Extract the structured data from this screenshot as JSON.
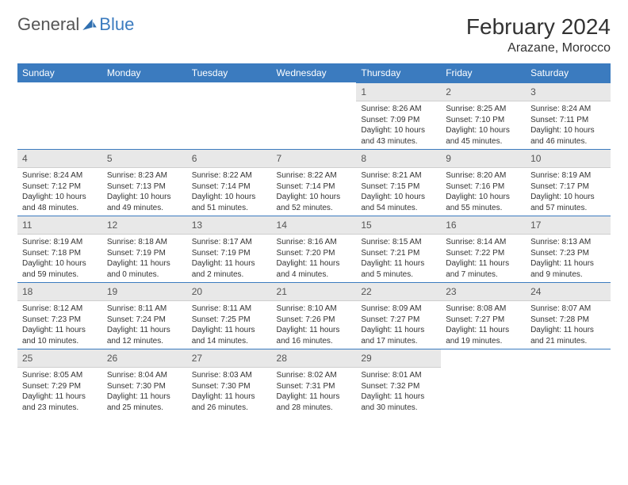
{
  "brand": {
    "word1": "General",
    "word2": "Blue",
    "icon_color": "#2f6fb0"
  },
  "title": "February 2024",
  "location": "Arazane, Morocco",
  "header_bg": "#3b7bbf",
  "header_fg": "#ffffff",
  "daynum_bg": "#e8e8e8",
  "rule_color": "#3b7bbf",
  "weekdays": [
    "Sunday",
    "Monday",
    "Tuesday",
    "Wednesday",
    "Thursday",
    "Friday",
    "Saturday"
  ],
  "weeks": [
    [
      null,
      null,
      null,
      null,
      {
        "n": "1",
        "sunrise": "Sunrise: 8:26 AM",
        "sunset": "Sunset: 7:09 PM",
        "daylight": "Daylight: 10 hours and 43 minutes."
      },
      {
        "n": "2",
        "sunrise": "Sunrise: 8:25 AM",
        "sunset": "Sunset: 7:10 PM",
        "daylight": "Daylight: 10 hours and 45 minutes."
      },
      {
        "n": "3",
        "sunrise": "Sunrise: 8:24 AM",
        "sunset": "Sunset: 7:11 PM",
        "daylight": "Daylight: 10 hours and 46 minutes."
      }
    ],
    [
      {
        "n": "4",
        "sunrise": "Sunrise: 8:24 AM",
        "sunset": "Sunset: 7:12 PM",
        "daylight": "Daylight: 10 hours and 48 minutes."
      },
      {
        "n": "5",
        "sunrise": "Sunrise: 8:23 AM",
        "sunset": "Sunset: 7:13 PM",
        "daylight": "Daylight: 10 hours and 49 minutes."
      },
      {
        "n": "6",
        "sunrise": "Sunrise: 8:22 AM",
        "sunset": "Sunset: 7:14 PM",
        "daylight": "Daylight: 10 hours and 51 minutes."
      },
      {
        "n": "7",
        "sunrise": "Sunrise: 8:22 AM",
        "sunset": "Sunset: 7:14 PM",
        "daylight": "Daylight: 10 hours and 52 minutes."
      },
      {
        "n": "8",
        "sunrise": "Sunrise: 8:21 AM",
        "sunset": "Sunset: 7:15 PM",
        "daylight": "Daylight: 10 hours and 54 minutes."
      },
      {
        "n": "9",
        "sunrise": "Sunrise: 8:20 AM",
        "sunset": "Sunset: 7:16 PM",
        "daylight": "Daylight: 10 hours and 55 minutes."
      },
      {
        "n": "10",
        "sunrise": "Sunrise: 8:19 AM",
        "sunset": "Sunset: 7:17 PM",
        "daylight": "Daylight: 10 hours and 57 minutes."
      }
    ],
    [
      {
        "n": "11",
        "sunrise": "Sunrise: 8:19 AM",
        "sunset": "Sunset: 7:18 PM",
        "daylight": "Daylight: 10 hours and 59 minutes."
      },
      {
        "n": "12",
        "sunrise": "Sunrise: 8:18 AM",
        "sunset": "Sunset: 7:19 PM",
        "daylight": "Daylight: 11 hours and 0 minutes."
      },
      {
        "n": "13",
        "sunrise": "Sunrise: 8:17 AM",
        "sunset": "Sunset: 7:19 PM",
        "daylight": "Daylight: 11 hours and 2 minutes."
      },
      {
        "n": "14",
        "sunrise": "Sunrise: 8:16 AM",
        "sunset": "Sunset: 7:20 PM",
        "daylight": "Daylight: 11 hours and 4 minutes."
      },
      {
        "n": "15",
        "sunrise": "Sunrise: 8:15 AM",
        "sunset": "Sunset: 7:21 PM",
        "daylight": "Daylight: 11 hours and 5 minutes."
      },
      {
        "n": "16",
        "sunrise": "Sunrise: 8:14 AM",
        "sunset": "Sunset: 7:22 PM",
        "daylight": "Daylight: 11 hours and 7 minutes."
      },
      {
        "n": "17",
        "sunrise": "Sunrise: 8:13 AM",
        "sunset": "Sunset: 7:23 PM",
        "daylight": "Daylight: 11 hours and 9 minutes."
      }
    ],
    [
      {
        "n": "18",
        "sunrise": "Sunrise: 8:12 AM",
        "sunset": "Sunset: 7:23 PM",
        "daylight": "Daylight: 11 hours and 10 minutes."
      },
      {
        "n": "19",
        "sunrise": "Sunrise: 8:11 AM",
        "sunset": "Sunset: 7:24 PM",
        "daylight": "Daylight: 11 hours and 12 minutes."
      },
      {
        "n": "20",
        "sunrise": "Sunrise: 8:11 AM",
        "sunset": "Sunset: 7:25 PM",
        "daylight": "Daylight: 11 hours and 14 minutes."
      },
      {
        "n": "21",
        "sunrise": "Sunrise: 8:10 AM",
        "sunset": "Sunset: 7:26 PM",
        "daylight": "Daylight: 11 hours and 16 minutes."
      },
      {
        "n": "22",
        "sunrise": "Sunrise: 8:09 AM",
        "sunset": "Sunset: 7:27 PM",
        "daylight": "Daylight: 11 hours and 17 minutes."
      },
      {
        "n": "23",
        "sunrise": "Sunrise: 8:08 AM",
        "sunset": "Sunset: 7:27 PM",
        "daylight": "Daylight: 11 hours and 19 minutes."
      },
      {
        "n": "24",
        "sunrise": "Sunrise: 8:07 AM",
        "sunset": "Sunset: 7:28 PM",
        "daylight": "Daylight: 11 hours and 21 minutes."
      }
    ],
    [
      {
        "n": "25",
        "sunrise": "Sunrise: 8:05 AM",
        "sunset": "Sunset: 7:29 PM",
        "daylight": "Daylight: 11 hours and 23 minutes."
      },
      {
        "n": "26",
        "sunrise": "Sunrise: 8:04 AM",
        "sunset": "Sunset: 7:30 PM",
        "daylight": "Daylight: 11 hours and 25 minutes."
      },
      {
        "n": "27",
        "sunrise": "Sunrise: 8:03 AM",
        "sunset": "Sunset: 7:30 PM",
        "daylight": "Daylight: 11 hours and 26 minutes."
      },
      {
        "n": "28",
        "sunrise": "Sunrise: 8:02 AM",
        "sunset": "Sunset: 7:31 PM",
        "daylight": "Daylight: 11 hours and 28 minutes."
      },
      {
        "n": "29",
        "sunrise": "Sunrise: 8:01 AM",
        "sunset": "Sunset: 7:32 PM",
        "daylight": "Daylight: 11 hours and 30 minutes."
      },
      null,
      null
    ]
  ]
}
